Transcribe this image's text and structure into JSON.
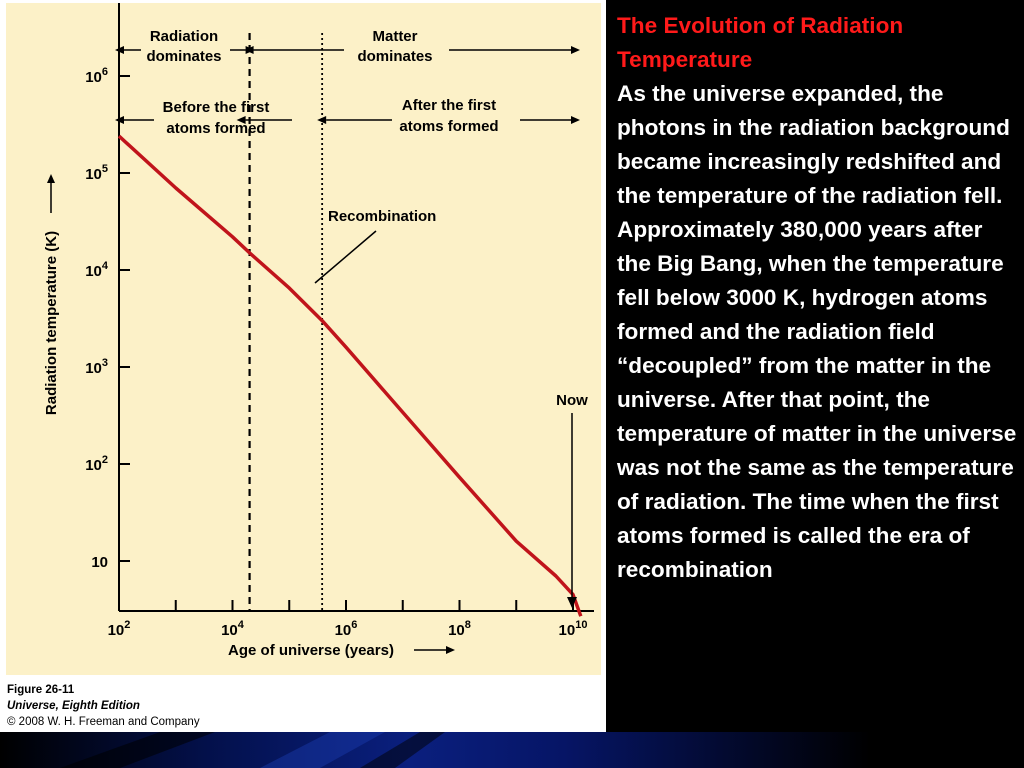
{
  "slide": {
    "title": "The Evolution of Radiation Temperature",
    "body": "As the universe expanded, the photons in the radiation background became increasingly redshifted and the temperature of the radiation fell. Approximately 380,000 years after the Big Bang, when the temperature fell below 3000 K, hydrogen atoms formed and the radiation field “decoupled” from the matter in the universe. After that point, the temperature of matter in the universe was not the same as the temperature of radiation. The time when the first atoms formed is called the era of recombination"
  },
  "credit": {
    "figure": "Figure 26-11",
    "book": "Universe, Eighth Edition",
    "copyright": "© 2008 W. H. Freeman and Company"
  },
  "colors": {
    "plot_background": "#fcf1c8",
    "curve": "#c0141b",
    "title_red": "#ff1a1a"
  },
  "chart_data": {
    "type": "line",
    "x_scale": "log",
    "y_scale": "log",
    "xlabel": "Age of universe (years)",
    "ylabel": "Radiation temperature (K)",
    "xlim": [
      100,
      20000000000
    ],
    "ylim": [
      3,
      1000000
    ],
    "x_ticks": [
      {
        "value": 100,
        "base": "10",
        "exp": "2"
      },
      {
        "value": 10000,
        "base": "10",
        "exp": "4"
      },
      {
        "value": 1000000,
        "base": "10",
        "exp": "6"
      },
      {
        "value": 100000000,
        "base": "10",
        "exp": "8"
      },
      {
        "value": 10000000000,
        "base": "10",
        "exp": "10"
      }
    ],
    "x_minor_ticks": [
      1000,
      100000,
      10000000,
      1000000000
    ],
    "y_ticks": [
      {
        "value": 10,
        "base": "10",
        "exp": ""
      },
      {
        "value": 100,
        "base": "10",
        "exp": "2"
      },
      {
        "value": 1000,
        "base": "10",
        "exp": "3"
      },
      {
        "value": 10000,
        "base": "10",
        "exp": "4"
      },
      {
        "value": 100000,
        "base": "10",
        "exp": "5"
      },
      {
        "value": 1000000,
        "base": "10",
        "exp": "6"
      }
    ],
    "series": [
      {
        "x": [
          100,
          1000,
          10000,
          20000,
          100000,
          380000,
          1000000,
          10000000,
          100000000,
          1000000000,
          5000000000,
          10000000000,
          13700000000
        ],
        "y": [
          240000,
          70000,
          22000,
          15000,
          6500,
          3000,
          1600,
          340,
          73,
          16,
          7,
          4.5,
          2.7
        ]
      }
    ],
    "vlines": [
      {
        "x": 20000,
        "style": "dashed"
      },
      {
        "x": 380000,
        "style": "dotted"
      }
    ],
    "annotations": {
      "radiation_dominates": [
        "Radiation",
        "dominates"
      ],
      "matter_dominates": [
        "Matter",
        "dominates"
      ],
      "before_atoms": [
        "Before the first",
        "atoms formed"
      ],
      "after_atoms": [
        "After the first",
        "atoms formed"
      ],
      "recombination": "Recombination",
      "now": "Now"
    }
  }
}
